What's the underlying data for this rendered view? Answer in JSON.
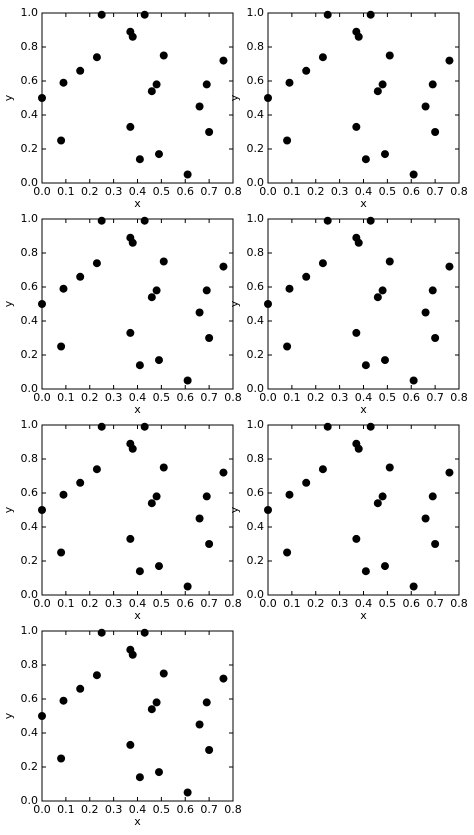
{
  "chart_data": [
    {
      "type": "scatter",
      "xlabel": "x",
      "ylabel": "y",
      "color": "#000000",
      "x": [
        0.0,
        0.08,
        0.09,
        0.16,
        0.23,
        0.25,
        0.37,
        0.38,
        0.37,
        0.41,
        0.43,
        0.46,
        0.48,
        0.49,
        0.51,
        0.61,
        0.66,
        0.69,
        0.7,
        0.76
      ],
      "y": [
        0.5,
        0.25,
        0.59,
        0.66,
        0.74,
        0.99,
        0.89,
        0.86,
        0.33,
        0.14,
        0.99,
        0.54,
        0.58,
        0.17,
        0.75,
        0.05,
        0.45,
        0.58,
        0.3,
        0.72
      ],
      "xlim": [
        0,
        0.8
      ],
      "ylim": [
        0,
        1
      ],
      "xticks": [
        {
          "value": 0,
          "label": "0.0"
        },
        0.1,
        0.2,
        0.3,
        0.4,
        0.5,
        0.6,
        0.7,
        0.8
      ],
      "yticks": [
        {
          "value": 0,
          "label": "0.0"
        },
        0.2,
        0.4,
        0.6,
        0.8,
        {
          "value": 1,
          "label": "1.0"
        }
      ]
    },
    {
      "type": "scatter",
      "xlabel": "x",
      "ylabel": "y",
      "color": "#000000",
      "x": [
        0.0,
        0.08,
        0.09,
        0.16,
        0.23,
        0.25,
        0.37,
        0.38,
        0.37,
        0.41,
        0.43,
        0.46,
        0.48,
        0.49,
        0.51,
        0.61,
        0.66,
        0.69,
        0.7,
        0.76
      ],
      "y": [
        0.5,
        0.25,
        0.59,
        0.66,
        0.74,
        0.99,
        0.89,
        0.86,
        0.33,
        0.14,
        0.99,
        0.54,
        0.58,
        0.17,
        0.75,
        0.05,
        0.45,
        0.58,
        0.3,
        0.72
      ],
      "xlim": [
        0,
        0.8
      ],
      "ylim": [
        0,
        1
      ],
      "xticks": [
        {
          "value": 0,
          "label": "0.0"
        },
        0.1,
        0.2,
        0.3,
        0.4,
        0.5,
        0.6,
        0.7,
        0.8
      ],
      "yticks": [
        {
          "value": 0,
          "label": "0.0"
        },
        0.2,
        0.4,
        0.6,
        0.8,
        {
          "value": 1,
          "label": "1.0"
        }
      ]
    },
    {
      "type": "scatter",
      "xlabel": "x",
      "ylabel": "y",
      "color": "#000000",
      "x": [
        0.0,
        0.08,
        0.09,
        0.16,
        0.23,
        0.25,
        0.37,
        0.38,
        0.37,
        0.41,
        0.43,
        0.46,
        0.48,
        0.49,
        0.51,
        0.61,
        0.66,
        0.69,
        0.7,
        0.76
      ],
      "y": [
        0.5,
        0.25,
        0.59,
        0.66,
        0.74,
        0.99,
        0.89,
        0.86,
        0.33,
        0.14,
        0.99,
        0.54,
        0.58,
        0.17,
        0.75,
        0.05,
        0.45,
        0.58,
        0.3,
        0.72
      ],
      "xlim": [
        0,
        0.8
      ],
      "ylim": [
        0,
        1
      ],
      "xticks": [
        {
          "value": 0,
          "label": "0.0"
        },
        0.1,
        0.2,
        0.3,
        0.4,
        0.5,
        0.6,
        0.7,
        0.8
      ],
      "yticks": [
        {
          "value": 0,
          "label": "0.0"
        },
        0.2,
        0.4,
        0.6,
        0.8,
        {
          "value": 1,
          "label": "1.0"
        }
      ]
    },
    {
      "type": "scatter",
      "xlabel": "x",
      "ylabel": "y",
      "color": "#000000",
      "x": [
        0.0,
        0.08,
        0.09,
        0.16,
        0.23,
        0.25,
        0.37,
        0.38,
        0.37,
        0.41,
        0.43,
        0.46,
        0.48,
        0.49,
        0.51,
        0.61,
        0.66,
        0.69,
        0.7,
        0.76
      ],
      "y": [
        0.5,
        0.25,
        0.59,
        0.66,
        0.74,
        0.99,
        0.89,
        0.86,
        0.33,
        0.14,
        0.99,
        0.54,
        0.58,
        0.17,
        0.75,
        0.05,
        0.45,
        0.58,
        0.3,
        0.72
      ],
      "xlim": [
        0,
        0.8
      ],
      "ylim": [
        0,
        1
      ],
      "xticks": [
        {
          "value": 0,
          "label": "0.0"
        },
        0.1,
        0.2,
        0.3,
        0.4,
        0.5,
        0.6,
        0.7,
        0.8
      ],
      "yticks": [
        {
          "value": 0,
          "label": "0.0"
        },
        0.2,
        0.4,
        0.6,
        0.8,
        {
          "value": 1,
          "label": "1.0"
        }
      ]
    },
    {
      "type": "scatter",
      "xlabel": "x",
      "ylabel": "y",
      "color": "#000000",
      "x": [
        0.0,
        0.08,
        0.09,
        0.16,
        0.23,
        0.25,
        0.37,
        0.38,
        0.37,
        0.41,
        0.43,
        0.46,
        0.48,
        0.49,
        0.51,
        0.61,
        0.66,
        0.69,
        0.7,
        0.76
      ],
      "y": [
        0.5,
        0.25,
        0.59,
        0.66,
        0.74,
        0.99,
        0.89,
        0.86,
        0.33,
        0.14,
        0.99,
        0.54,
        0.58,
        0.17,
        0.75,
        0.05,
        0.45,
        0.58,
        0.3,
        0.72
      ],
      "xlim": [
        0,
        0.8
      ],
      "ylim": [
        0,
        1
      ],
      "xticks": [
        {
          "value": 0,
          "label": "0.0"
        },
        0.1,
        0.2,
        0.3,
        0.4,
        0.5,
        0.6,
        0.7,
        0.8
      ],
      "yticks": [
        {
          "value": 0,
          "label": "0.0"
        },
        0.2,
        0.4,
        0.6,
        0.8,
        {
          "value": 1,
          "label": "1.0"
        }
      ]
    },
    {
      "type": "scatter",
      "xlabel": "x",
      "ylabel": "y",
      "color": "#000000",
      "x": [
        0.0,
        0.08,
        0.09,
        0.16,
        0.23,
        0.25,
        0.37,
        0.38,
        0.37,
        0.41,
        0.43,
        0.46,
        0.48,
        0.49,
        0.51,
        0.61,
        0.66,
        0.69,
        0.7,
        0.76
      ],
      "y": [
        0.5,
        0.25,
        0.59,
        0.66,
        0.74,
        0.99,
        0.89,
        0.86,
        0.33,
        0.14,
        0.99,
        0.54,
        0.58,
        0.17,
        0.75,
        0.05,
        0.45,
        0.58,
        0.3,
        0.72
      ],
      "xlim": [
        0,
        0.8
      ],
      "ylim": [
        0,
        1
      ],
      "xticks": [
        {
          "value": 0,
          "label": "0.0"
        },
        0.1,
        0.2,
        0.3,
        0.4,
        0.5,
        0.6,
        0.7,
        0.8
      ],
      "yticks": [
        {
          "value": 0,
          "label": "0.0"
        },
        0.2,
        0.4,
        0.6,
        0.8,
        {
          "value": 1,
          "label": "1.0"
        }
      ]
    },
    {
      "type": "scatter",
      "xlabel": "x",
      "ylabel": "y",
      "color": "#000000",
      "x": [
        0.0,
        0.08,
        0.09,
        0.16,
        0.23,
        0.25,
        0.37,
        0.38,
        0.37,
        0.41,
        0.43,
        0.46,
        0.48,
        0.49,
        0.51,
        0.61,
        0.66,
        0.69,
        0.7,
        0.76
      ],
      "y": [
        0.5,
        0.25,
        0.59,
        0.66,
        0.74,
        0.99,
        0.89,
        0.86,
        0.33,
        0.14,
        0.99,
        0.54,
        0.58,
        0.17,
        0.75,
        0.05,
        0.45,
        0.58,
        0.3,
        0.72
      ],
      "xlim": [
        0,
        0.8
      ],
      "ylim": [
        0,
        1
      ],
      "xticks": [
        {
          "value": 0,
          "label": "0.0"
        },
        0.1,
        0.2,
        0.3,
        0.4,
        0.5,
        0.6,
        0.7,
        0.8
      ],
      "yticks": [
        {
          "value": 0,
          "label": "0.0"
        },
        0.2,
        0.4,
        0.6,
        0.8,
        {
          "value": 1,
          "label": "1.0"
        }
      ]
    }
  ]
}
